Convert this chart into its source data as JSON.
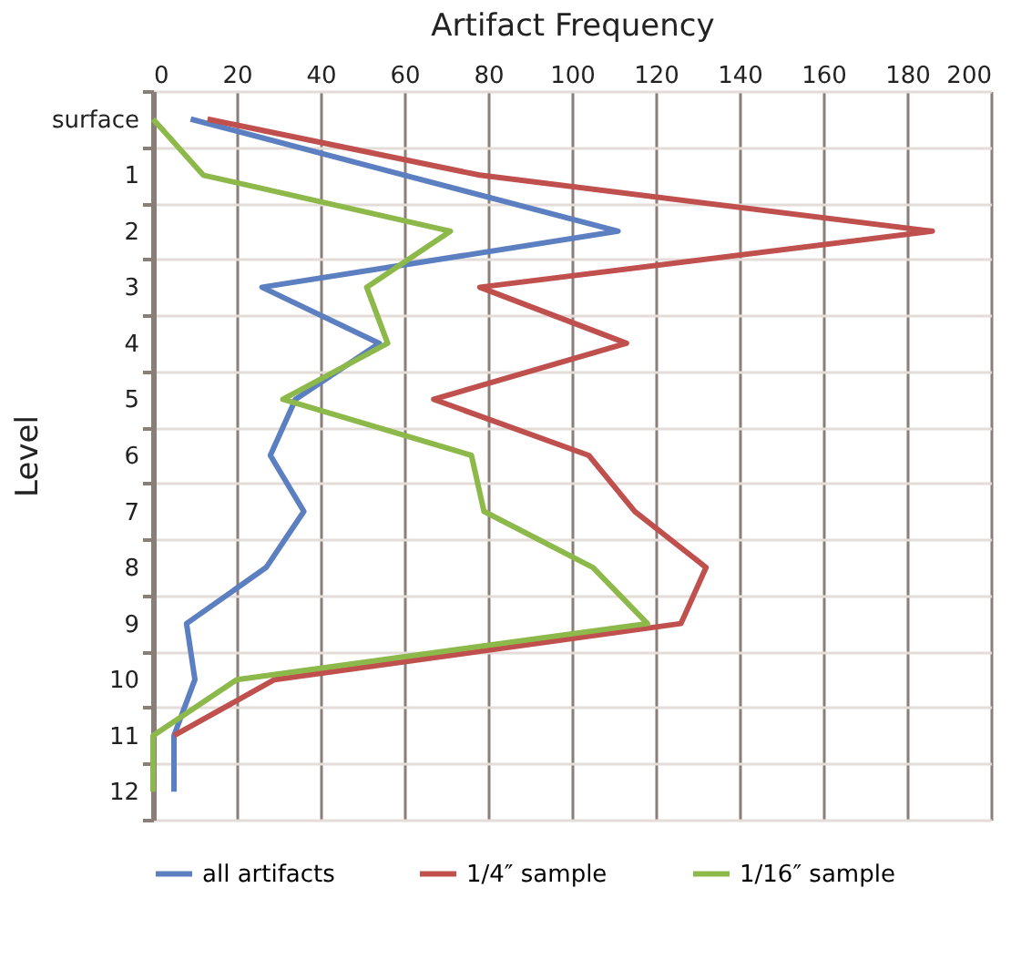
{
  "chart_data": {
    "type": "line",
    "orientation": "horizontal",
    "xlabel": "Artifact Frequency",
    "ylabel": "Level",
    "categories": [
      "surface",
      "1",
      "2",
      "3",
      "4",
      "5",
      "6",
      "7",
      "8",
      "9",
      "10",
      "11",
      "12"
    ],
    "series": [
      {
        "name": "all artifacts",
        "color": "#5b7fc0",
        "values": [
          9,
          60,
          111,
          26,
          54,
          34,
          28,
          36,
          27,
          8,
          10,
          5,
          5
        ]
      },
      {
        "name": "1/4″ sample",
        "color": "#c0504d",
        "values": [
          13,
          78,
          186,
          78,
          113,
          67,
          104,
          115,
          132,
          126,
          29,
          5,
          null
        ]
      },
      {
        "name": "1/16″ sample",
        "color": "#8db84a",
        "values": [
          0,
          12,
          71,
          51,
          56,
          31,
          76,
          79,
          105,
          118,
          20,
          0,
          0
        ]
      }
    ],
    "xlim": [
      0,
      200
    ],
    "xticks": [
      0,
      20,
      40,
      60,
      80,
      100,
      120,
      140,
      160,
      180,
      200
    ],
    "grid": true,
    "legend": "bottom",
    "marker": "none",
    "line_style": "solid"
  }
}
